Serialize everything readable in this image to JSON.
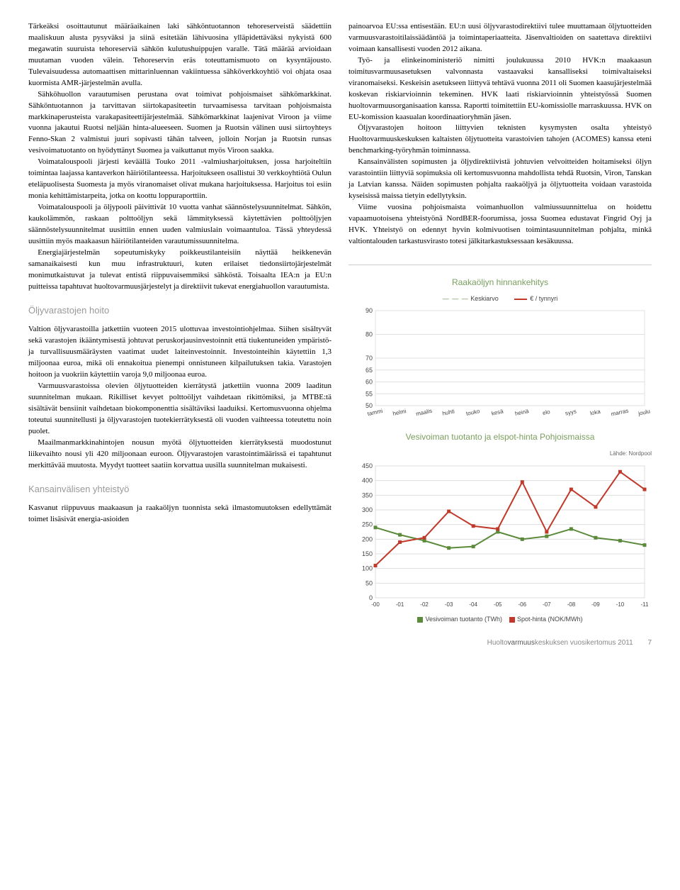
{
  "left": {
    "p1": "Tärkeäksi osoittautunut määräaikainen laki sähköntuotannon tehoreserveistä säädettiin maaliskuun alusta pysyväksi ja siinä esitetään lähivuosina ylläpidettäväksi nykyistä 600 megawatin suuruista tehoreserviä sähkön kulutushuippujen varalle. Tätä määrää arvioidaan muutaman vuoden välein. Tehoreservin eräs toteuttamismuoto on kysyntäjousto. Tulevaisuudessa automaattisen mittarinluennan vakiintuessa sähköverkkoyhtiö voi ohjata osaa kuormista AMR-järjestelmän avulla.",
    "p2": "Sähköhuollon varautumisen perustana ovat toimivat pohjoismaiset sähkömarkkinat. Sähköntuotannon ja tarvittavan siirtokapasiteetin turvaamisessa tarvitaan pohjoismaista markkinaperusteista varakapasiteettijärjestelmää. Sähkömarkkinat laajenivat Viroon ja viime vuonna jakautui Ruotsi neljään hinta-alueeseen. Suomen ja Ruotsin välinen uusi siirtoyhteys Fenno-Skan 2 valmistui juuri sopivasti tähän talveen, jolloin Norjan ja Ruotsin runsas vesivoimatuotanto on hyödyttänyt Suomea ja vaikuttanut myös Viroon saakka.",
    "p3": "Voimatalouspooli järjesti keväällä Touko 2011 -valmiusharjoituksen, jossa harjoiteltiin toimintaa laajassa kantaverkon häiriötilanteessa. Harjoitukseen osallistui 30 verkkoyhtiötä Oulun eteläpuolisesta Suomesta ja myös viranomaiset olivat mukana harjoituksessa. Harjoitus toi esiin monia kehittämistarpeita, jotka on koottu loppuraporttiin.",
    "p4": "Voimatalouspooli ja öljypooli päivittivät 10 vuotta vanhat säännöstelysuunnitelmat. Sähkön, kaukolämmön, raskaan polttoöljyn sekä lämmityksessä käytettävien polttoöljyjen säännöstelysuunnitelmat uusittiin ennen uuden valmiuslain voimaantuloa. Tässä yhteydessä uusittiin myös maakaasun häiriötilanteiden varautumissuunnitelma.",
    "p5": "Energiajärjestelmän sopeutumiskyky poikkeustilanteisiin näyttää heikkenevän samanaikaisesti kun muu infrastruktuuri, kuten erilaiset tiedonsiirtojärjestelmät monimutkaistuvat ja tulevat entistä riippuvaisemmiksi sähköstä. Toisaalta IEA:n ja EU:n puitteissa tapahtuvat huoltovarmuusjärjestelyt ja direktiivit tukevat energiahuollon varautumista.",
    "h1": "Öljyvarastojen hoito",
    "p6": "Valtion öljyvarastoilla jatkettiin vuoteen 2015 ulottuvaa investointiohjelmaa. Siihen sisältyvät sekä varastojen ikääntymisestä johtuvat peruskorjausinvestoinnit että tiukentuneiden ympäristö- ja turvallisuusmääräysten vaatimat uudet laiteinvestoinnit. Investointeihin käytettiin 1,3 miljoonaa euroa, mikä oli ennakoitua pienempi onnistuneen kilpailutuksen takia. Varastojen hoitoon ja vuokriin käytettiin varoja 9,0 miljoonaa euroa.",
    "p7": "Varmuusvarastoissa olevien öljytuotteiden kierrätystä jatkettiin vuonna 2009 laaditun suunnitelman mukaan. Rikilliset kevyet polttoöljyt vaihdetaan rikittömiksi, ja MTBE:tä sisältävät bensiinit vaihdetaan biokomponenttia sisältäviksi laaduiksi. Kertomusvuonna ohjelma toteutui suunnitellusti ja öljyvarastojen tuotekierrätyksestä oli vuoden vaihteessa toteutettu noin puolet.",
    "p8": "Maailmanmarkkinahintojen nousun myötä öljytuotteiden kierrätyksestä muodostunut liikevaihto nousi yli 420 miljoonaan euroon. Öljyvarastojen varastointimäärissä ei tapahtunut merkittävää muutosta. Myydyt tuotteet saatiin korvattua uusilla suunnitelman mukaisesti.",
    "h2": "Kansainvälisen yhteistyö",
    "p9": "Kasvanut riippuvuus maakaasun ja raakaöljyn tuonnista sekä ilmastomuutoksen edellyttämät toimet lisäsivät energia-asioiden"
  },
  "right": {
    "p1": "painoarvoa EU:ssa entisestään. EU:n uusi öljyvarastodirektiivi tulee muuttamaan öljytuotteiden varmuusvarastoitilaissäädäntöä ja toimintaperiaatteita. Jäsenvaltioiden on saatettava direktiivi voimaan kansallisesti vuoden 2012 aikana.",
    "p2": "Työ- ja elinkeinoministeriö nimitti joulukuussa 2010 HVK:n maakaasun toimitusvarmuusasetuksen valvonnasta vastaavaksi kansalliseksi toimivaltaiseksi viranomaiseksi. Keskeisin asetukseen liittyvä tehtävä vuonna 2011 oli Suomen kaasujärjestelmää koskevan riskiarvioinnin tekeminen. HVK laati riskiarvioinnin yhteistyössä Suomen huoltovarmuusorganisaation kanssa. Raportti toimitettiin EU-komissiolle marraskuussa. HVK on EU-komission kaasualan koordinaatioryhmän jäsen.",
    "p3": "Öljyvarastojen hoitoon liittyvien teknisten kysymysten osalta yhteistyö Huoltovarmuuskeskuksen kaltaisten öljytuotteita varastoivien tahojen (ACOMES) kanssa eteni benchmarking-työryhmän toiminnassa.",
    "p4": "Kansainvälisten sopimusten ja öljydirektiivistä johtuvien velvoitteiden hoitamiseksi öljyn varastointiin liittyviä sopimuksia oli kertomusvuonna mahdollista tehdä Ruotsin, Viron, Tanskan ja Latvian kanssa. Näiden sopimusten pohjalta raakaöljyä ja öljytuotteita voidaan varastoida kyseisissä maissa tietyin edellytyksin.",
    "p5": "Viime vuosina pohjoismaista voimanhuollon valmiussuunnittelua on hoidettu vapaamuotoisena yhteistyönä NordBER-foorumissa, jossa Suomea edustavat Fingrid Oyj ja HVK. Yhteistyö on edennyt hyvin kolmivuotisen toimintasuunnitelman pohjalta, minkä valtiontalouden tarkastusvirasto totesi jälkitarkastuksessaan kesäkuussa."
  },
  "chart1": {
    "title": "Raakaöljyn hinnankehitys",
    "legend_a": "Keskiarvo",
    "legend_b": "€ / tynnyri",
    "yticks": [
      "50",
      "55",
      "60",
      "65",
      "70",
      "80",
      "90"
    ],
    "xticks": [
      "tammi",
      "helmi",
      "maalis",
      "huhti",
      "touko",
      "kesä",
      "heinä",
      "elo",
      "syys",
      "loka",
      "marras",
      "joulu"
    ],
    "background": "#ffffff",
    "grid_color": "#e0e0e0",
    "dash_color": "#6a8a4a",
    "solid_color": "#c0392b"
  },
  "chart2": {
    "title": "Vesivoiman tuotanto ja elspot-hinta Pohjoismaissa",
    "source": "Lähde: Nordpool",
    "yticks": [
      "0",
      "50",
      "100",
      "150",
      "200",
      "250",
      "300",
      "350",
      "400",
      "450"
    ],
    "xticks": [
      "-00",
      "-01",
      "-02",
      "-03",
      "-04",
      "-05",
      "-06",
      "-07",
      "-08",
      "-09",
      "-10",
      "-11"
    ],
    "series_a": {
      "name": "Vesivoiman tuotanto (TWh)",
      "color": "#5a8a3a",
      "values": [
        240,
        215,
        195,
        170,
        175,
        225,
        200,
        210,
        235,
        205,
        195,
        180
      ]
    },
    "series_b": {
      "name": "Spot-hinta (NOK/MWh)",
      "color": "#c0392b",
      "values": [
        110,
        190,
        205,
        295,
        245,
        235,
        395,
        225,
        370,
        310,
        430,
        370
      ]
    },
    "background": "#ffffff",
    "grid_color": "#dddddd",
    "ylim": [
      0,
      450
    ]
  },
  "footer": {
    "text_a": "Huolto",
    "text_b": "varmuus",
    "text_c": "keskuksen vuosikertomus 2011",
    "page": "7"
  }
}
